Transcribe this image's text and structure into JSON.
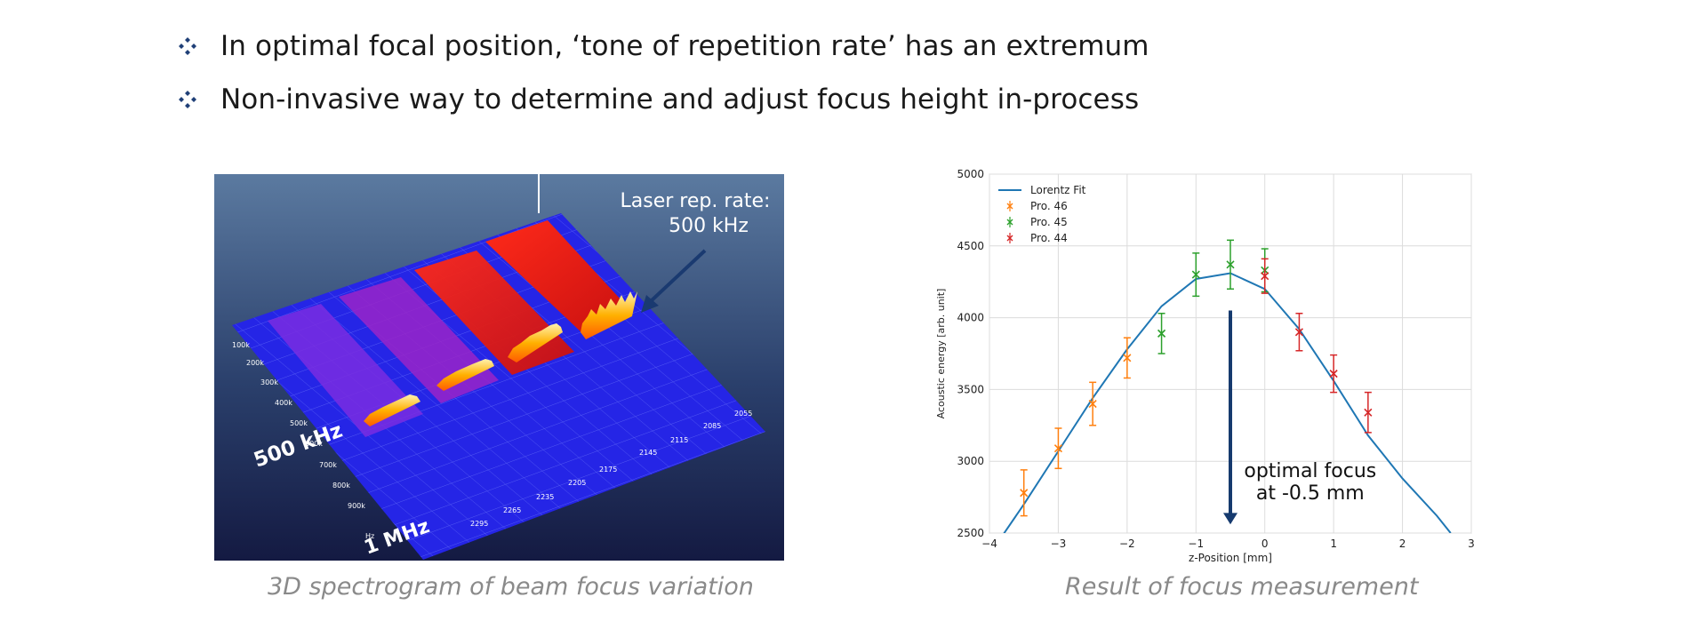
{
  "bullets": [
    "In optimal focal position, ‘tone of repetition rate’ has an extremum",
    "Non-invasive way to determine and adjust focus height in-process"
  ],
  "spectrogram": {
    "caption": "3D spectrogram of beam focus variation",
    "annotation_line1": "Laser rep. rate:",
    "annotation_line2": "500 kHz",
    "label_500khz": "500 kHz",
    "label_1mhz": "1 MHz",
    "left_ticks": [
      "100k",
      "200k",
      "300k",
      "400k",
      "500k",
      "600k",
      "700k",
      "800k",
      "900k",
      "Hz"
    ],
    "bottom_ticks": [
      "2295",
      "2265",
      "2235",
      "2205",
      "2175",
      "2145",
      "2115",
      "2085",
      "2055"
    ]
  },
  "chart": {
    "caption": "Result of focus measurement",
    "annotation_line1": "optimal focus",
    "annotation_line2": "at -0.5 mm"
  },
  "chart_data": {
    "type": "scatter",
    "xlabel": "z-Position [mm]",
    "ylabel": "Acoustic energy [arb. unit]",
    "xlim": [
      -4,
      3
    ],
    "ylim": [
      2500,
      5000
    ],
    "xticks": [
      -4,
      -3,
      -2,
      -1,
      0,
      1,
      2,
      3
    ],
    "yticks": [
      2500,
      3000,
      3500,
      4000,
      4500,
      5000
    ],
    "grid": true,
    "legend_position": "top-left",
    "fit": {
      "name": "Lorentz Fit",
      "color": "#1f77b4",
      "x": [
        -4,
        -3.5,
        -3,
        -2.5,
        -2,
        -1.5,
        -1,
        -0.5,
        0,
        0.5,
        1,
        1.5,
        2,
        2.5,
        2.7
      ],
      "y": [
        2350,
        2700,
        3070,
        3440,
        3780,
        4080,
        4270,
        4310,
        4200,
        3920,
        3560,
        3180,
        2880,
        2620,
        2500
      ]
    },
    "series": [
      {
        "name": "Pro. 46",
        "color": "#ff7f0e",
        "x": [
          -3.5,
          -3,
          -2.5,
          -2
        ],
        "y": [
          2780,
          3090,
          3400,
          3720
        ],
        "err": [
          160,
          140,
          150,
          140
        ]
      },
      {
        "name": "Pro. 45",
        "color": "#2ca02c",
        "x": [
          -1.5,
          -1,
          -0.5,
          0
        ],
        "y": [
          3890,
          4300,
          4370,
          4330
        ],
        "err": [
          140,
          150,
          170,
          150
        ]
      },
      {
        "name": "Pro. 44",
        "color": "#d62728",
        "x": [
          0,
          0.5,
          1,
          1.5
        ],
        "y": [
          4290,
          3900,
          3610,
          3340
        ],
        "err": [
          120,
          130,
          130,
          140
        ]
      }
    ]
  }
}
